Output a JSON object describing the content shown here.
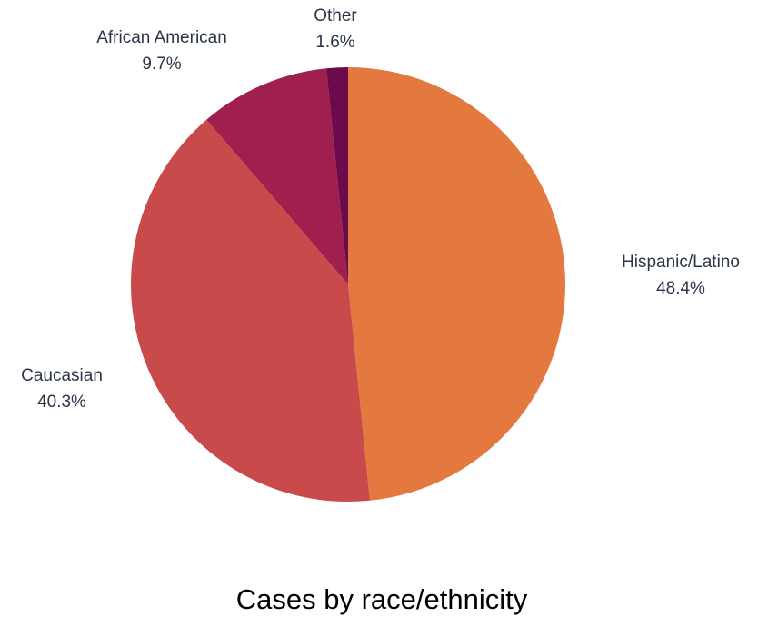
{
  "chart_data": {
    "type": "pie",
    "title": "Cases by race/ethnicity",
    "categories": [
      "Hispanic/Latino",
      "Caucasian",
      "African American",
      "Other"
    ],
    "values": [
      48.4,
      40.3,
      9.7,
      1.6
    ],
    "value_labels": [
      "48.4%",
      "40.3%",
      "9.7%",
      "1.6%"
    ],
    "colors": [
      "#e47940",
      "#c84a4a",
      "#9f1f4e",
      "#6c0b4b"
    ],
    "start_angle": "12 o'clock",
    "direction": "clockwise",
    "legend": "none (labels placed outside slices)"
  }
}
